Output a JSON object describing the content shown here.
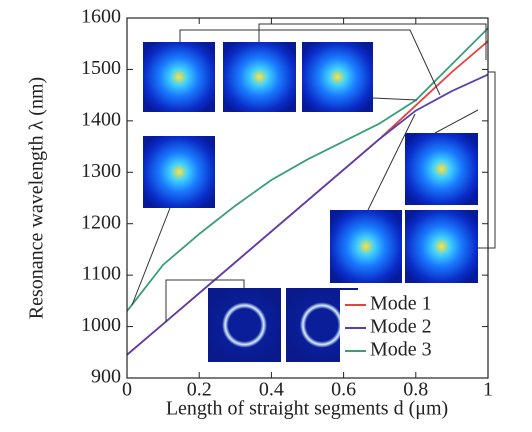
{
  "chart_data": {
    "type": "line",
    "xlabel": "Length of straight segments d (μm)",
    "ylabel": "Resonance wavelength λ (nm)",
    "x": [
      0,
      0.1,
      0.2,
      0.3,
      0.4,
      0.5,
      0.6,
      0.7,
      0.8,
      0.9,
      1.0
    ],
    "series": [
      {
        "name": "Mode 1",
        "color": "#e8413c",
        "values": [
          945,
          1005,
          1065,
          1125,
          1185,
          1245,
          1305,
          1365,
          1430,
          1495,
          1555
        ]
      },
      {
        "name": "Mode 2",
        "color": "#5a3fb0",
        "values": [
          945,
          1005,
          1065,
          1125,
          1185,
          1245,
          1305,
          1365,
          1420,
          1458,
          1490
        ]
      },
      {
        "name": "Mode 3",
        "color": "#3a9e7a",
        "values": [
          1030,
          1120,
          1180,
          1235,
          1285,
          1325,
          1360,
          1395,
          1440,
          1510,
          1580
        ]
      }
    ],
    "xlim": [
      0,
      1
    ],
    "xticks": [
      0,
      0.2,
      0.4,
      0.6,
      0.8,
      1
    ],
    "ylim": [
      900,
      1600
    ],
    "yticks": [
      900,
      1000,
      1100,
      1200,
      1300,
      1400,
      1500,
      1600
    ],
    "legend": "lower right"
  }
}
